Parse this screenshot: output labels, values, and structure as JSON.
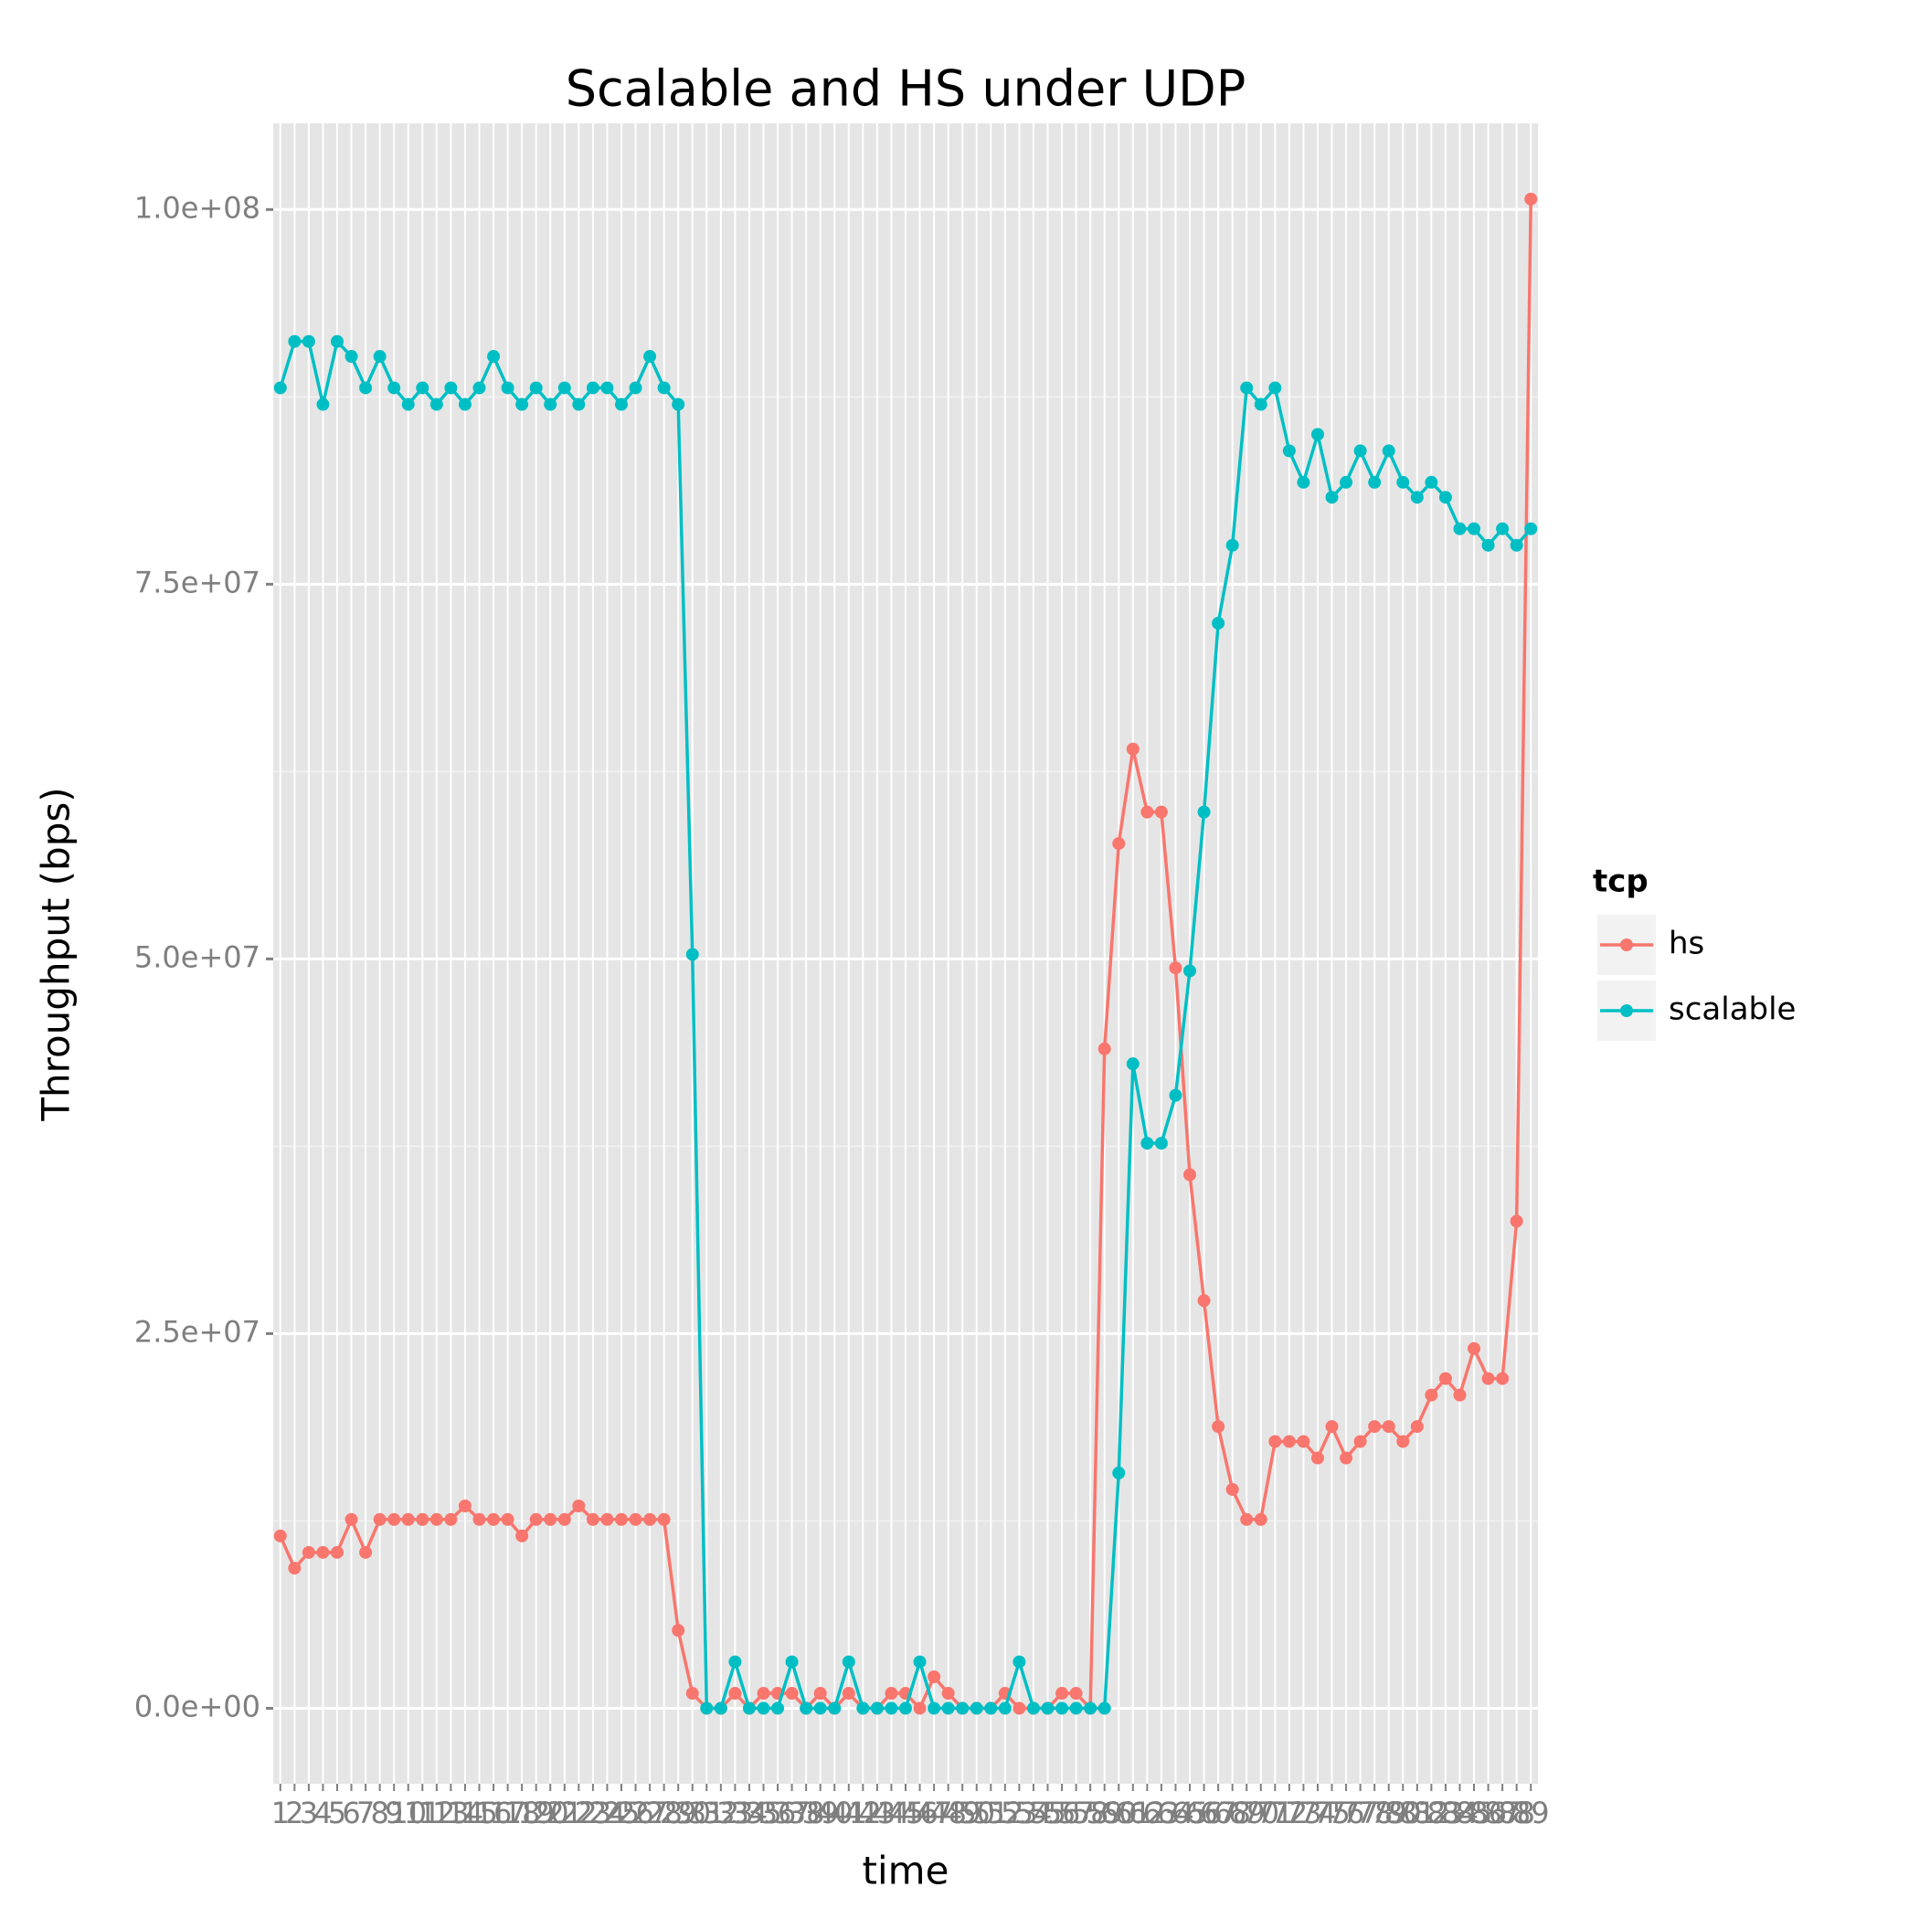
{
  "chart_data": {
    "type": "line",
    "title": "Scalable and HS under UDP",
    "x_label": "time",
    "y_label": "Throughput (bps)",
    "categories": [
      "1",
      "2",
      "3",
      "4",
      "5",
      "6",
      "7",
      "8",
      "9",
      "10",
      "11",
      "12",
      "13",
      "14",
      "15",
      "16",
      "17",
      "18",
      "19",
      "20",
      "21",
      "22",
      "23",
      "24",
      "25",
      "26",
      "27",
      "28",
      "29",
      "30",
      "31",
      "32",
      "33",
      "34",
      "35",
      "36",
      "37",
      "38",
      "39",
      "40",
      "41",
      "42",
      "43",
      "44",
      "45",
      "46",
      "47",
      "48",
      "49",
      "50",
      "51",
      "52",
      "53",
      "54",
      "55",
      "56",
      "57",
      "58",
      "59",
      "60",
      "61",
      "62",
      "63",
      "64",
      "65",
      "66",
      "67",
      "68",
      "69",
      "70",
      "71",
      "72",
      "73",
      "74",
      "75",
      "76",
      "77",
      "78",
      "79",
      "80",
      "81",
      "82",
      "83",
      "84",
      "85",
      "86",
      "87",
      "88",
      "89"
    ],
    "series": [
      {
        "name": "hs",
        "color": "#F8766D",
        "values": [
          11500000,
          9350000,
          10400000,
          10400000,
          10400000,
          12600000,
          10400000,
          12600000,
          12600000,
          12600000,
          12600000,
          12600000,
          12600000,
          13500000,
          12600000,
          12600000,
          12600000,
          11500000,
          12600000,
          12600000,
          12600000,
          13500000,
          12600000,
          12600000,
          12600000,
          12600000,
          12600000,
          12600000,
          5200000,
          1000000,
          0,
          0,
          1000000,
          0,
          1000000,
          1000000,
          1000000,
          0,
          1000000,
          0,
          1000000,
          0,
          0,
          1000000,
          1000000,
          0,
          2100000,
          1000000,
          0,
          0,
          0,
          1000000,
          0,
          0,
          0,
          1000000,
          1000000,
          0,
          44000000,
          57700000,
          64000000,
          59800000,
          59800000,
          49400000,
          35600000,
          27200000,
          18800000,
          14600000,
          12600000,
          12600000,
          17800000,
          17800000,
          17800000,
          16700000,
          18800000,
          16700000,
          17800000,
          18800000,
          18800000,
          17800000,
          18800000,
          20900000,
          22000000,
          20900000,
          24000000,
          22000000,
          22000000,
          32500000,
          100700000
        ]
      },
      {
        "name": "scalable",
        "color": "#00BFC4",
        "values": [
          88100000,
          91200000,
          91200000,
          87000000,
          91200000,
          90200000,
          88100000,
          90200000,
          88100000,
          87000000,
          88100000,
          87000000,
          88100000,
          87000000,
          88100000,
          90200000,
          88100000,
          87000000,
          88100000,
          87000000,
          88100000,
          87000000,
          88100000,
          88100000,
          87000000,
          88100000,
          90200000,
          88100000,
          87000000,
          50300000,
          0,
          0,
          3100000,
          0,
          0,
          0,
          3100000,
          0,
          0,
          0,
          3100000,
          0,
          0,
          0,
          0,
          3100000,
          0,
          0,
          0,
          0,
          0,
          0,
          3100000,
          0,
          0,
          0,
          0,
          0,
          0,
          15700000,
          43000000,
          37700000,
          37700000,
          40900000,
          49200000,
          59800000,
          72400000,
          77600000,
          88100000,
          87000000,
          88100000,
          83900000,
          81800000,
          85000000,
          80800000,
          81800000,
          83900000,
          81800000,
          83900000,
          81800000,
          80800000,
          81800000,
          80800000,
          78700000,
          78700000,
          77600000,
          78700000,
          77600000,
          78700000
        ]
      }
    ],
    "ylim": [
      -5035000,
      105750000
    ],
    "yticks": [
      {
        "value": 0,
        "label": "0.0e+00"
      },
      {
        "value": 25000000,
        "label": "2.5e+07"
      },
      {
        "value": 50000000,
        "label": "5.0e+07"
      },
      {
        "value": 75000000,
        "label": "7.5e+07"
      },
      {
        "value": 100000000,
        "label": "1.0e+08"
      }
    ],
    "legend_title": "tcp",
    "grid": true
  }
}
